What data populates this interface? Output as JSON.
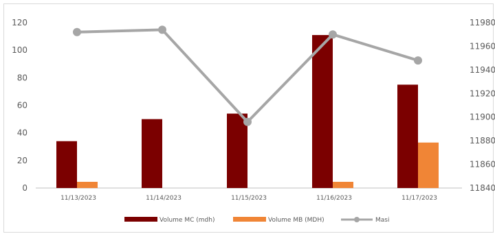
{
  "chart_data": {
    "type": "bar",
    "categories": [
      "11/13/2023",
      "11/14/2023",
      "11/15/2023",
      "11/16/2023",
      "11/17/2023"
    ],
    "series": [
      {
        "name": "Volume MC (mdh)",
        "type": "bar",
        "axis": "left",
        "color": "#7b0000",
        "values": [
          34,
          50,
          54,
          111,
          75
        ]
      },
      {
        "name": "Volume MB (MDH)",
        "type": "bar",
        "axis": "left",
        "color": "#f08536",
        "values": [
          4.5,
          0,
          0,
          4.5,
          33
        ]
      },
      {
        "name": "Masi",
        "type": "line",
        "axis": "right",
        "color": "#a6a6a6",
        "values": [
          11972,
          11974,
          11896,
          11970,
          11948
        ]
      }
    ],
    "ylim_left": [
      0,
      120
    ],
    "yticks_left": [
      "0",
      "20",
      "40",
      "60",
      "80",
      "100",
      "120"
    ],
    "ylim_right": [
      11840,
      11980
    ],
    "yticks_right": [
      "11840",
      "11860",
      "11880",
      "11900",
      "11920",
      "11940",
      "11960",
      "11980"
    ],
    "grid": false,
    "legend_position": "bottom"
  }
}
